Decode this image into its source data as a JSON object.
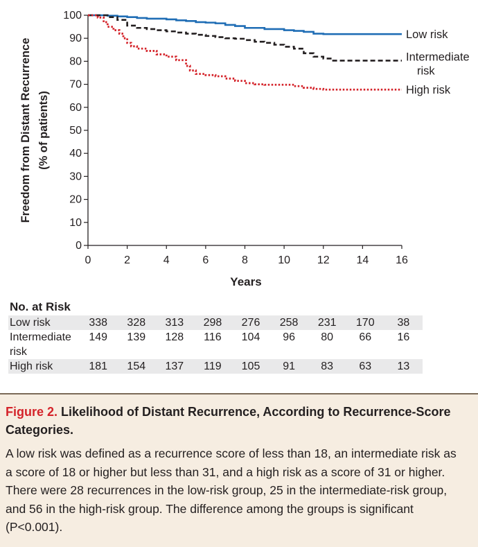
{
  "chart_data": {
    "type": "line",
    "title": "",
    "xlabel": "Years",
    "ylabel": "Freedom from Distant Recurrence",
    "ylabel2": "(% of patients)",
    "xlim": [
      0,
      16
    ],
    "ylim": [
      0,
      100
    ],
    "xticks": [
      0,
      2,
      4,
      6,
      8,
      10,
      12,
      14,
      16
    ],
    "yticks": [
      0,
      10,
      20,
      30,
      40,
      50,
      60,
      70,
      80,
      90,
      100
    ],
    "grid": false,
    "legend": "right-end labels",
    "series": [
      {
        "name": "Low risk",
        "color": "#1f6db5",
        "style": "solid",
        "x": [
          0,
          0.7,
          1.0,
          1.5,
          2.0,
          2.5,
          3.0,
          4.0,
          4.5,
          5.0,
          5.5,
          6.0,
          6.5,
          7.0,
          7.5,
          8.0,
          9.0,
          10.0,
          10.5,
          11.0,
          11.5,
          12.0,
          16.0
        ],
        "y": [
          100,
          100,
          99.8,
          99.5,
          99.2,
          98.8,
          98.5,
          98.2,
          97.8,
          97.5,
          97.0,
          96.8,
          96.5,
          95.8,
          95.3,
          94.5,
          94.0,
          93.5,
          93.2,
          92.8,
          92.0,
          91.8,
          91.8
        ]
      },
      {
        "name": "Intermediate risk",
        "label_lines": [
          "Intermediate",
          "risk"
        ],
        "color": "#231f20",
        "style": "dashed",
        "x": [
          0,
          0.6,
          1.0,
          1.5,
          2.0,
          2.5,
          3.0,
          3.5,
          4.0,
          4.5,
          5.0,
          5.5,
          6.0,
          6.5,
          7.0,
          7.5,
          8.0,
          8.5,
          9.0,
          9.5,
          10.0,
          10.5,
          11.0,
          11.5,
          12.0,
          12.5,
          16.0
        ],
        "y": [
          100,
          100,
          99.2,
          98.0,
          95.5,
          94.5,
          94.0,
          93.5,
          93.0,
          92.5,
          92.0,
          91.5,
          91.0,
          90.5,
          90.0,
          89.8,
          89.2,
          88.5,
          88.0,
          87.2,
          86.3,
          85.5,
          83.5,
          82.0,
          81.2,
          80.3,
          80.3
        ]
      },
      {
        "name": "High risk",
        "color": "#d4232a",
        "style": "dotted",
        "x": [
          0,
          0.5,
          0.8,
          1.0,
          1.3,
          1.6,
          1.8,
          2.0,
          2.2,
          2.5,
          3.0,
          3.5,
          4.0,
          4.5,
          5.0,
          5.2,
          5.5,
          6.0,
          6.5,
          7.0,
          7.5,
          8.0,
          8.5,
          9.0,
          10.0,
          10.5,
          11.0,
          11.5,
          12.0,
          16.0
        ],
        "y": [
          100,
          99.0,
          97.0,
          95.0,
          93.5,
          92.0,
          90.0,
          88.0,
          86.5,
          85.5,
          84.5,
          83.0,
          82.0,
          80.5,
          78.0,
          76.0,
          74.5,
          74.0,
          73.5,
          72.5,
          71.5,
          70.5,
          70.0,
          69.8,
          69.8,
          69.2,
          68.5,
          68.0,
          67.7,
          67.7
        ]
      }
    ]
  },
  "risk_table": {
    "title": "No. at Risk",
    "rows": [
      {
        "label": "Low risk",
        "values": [
          "338",
          "328",
          "313",
          "298",
          "276",
          "258",
          "231",
          "170",
          "38"
        ]
      },
      {
        "label": "Intermediate risk",
        "values": [
          "149",
          "139",
          "128",
          "116",
          "104",
          "96",
          "80",
          "66",
          "16"
        ]
      },
      {
        "label": "High risk",
        "values": [
          "181",
          "154",
          "137",
          "119",
          "105",
          "91",
          "83",
          "63",
          "13"
        ]
      }
    ]
  },
  "caption": {
    "figure_label": "Figure 2.",
    "title": "Likelihood of Distant Recurrence, According to Recurrence-Score Categories.",
    "body": "A low risk was defined as a recurrence score of less than 18, an intermediate risk as a score of 18 or higher but less than 31, and a high risk as a score of 31 or higher. There were 28 recurrences in the low-risk group, 25 in the intermediate-risk group, and 56 in the high-risk group. The difference among the groups is significant (P<0.001)."
  }
}
